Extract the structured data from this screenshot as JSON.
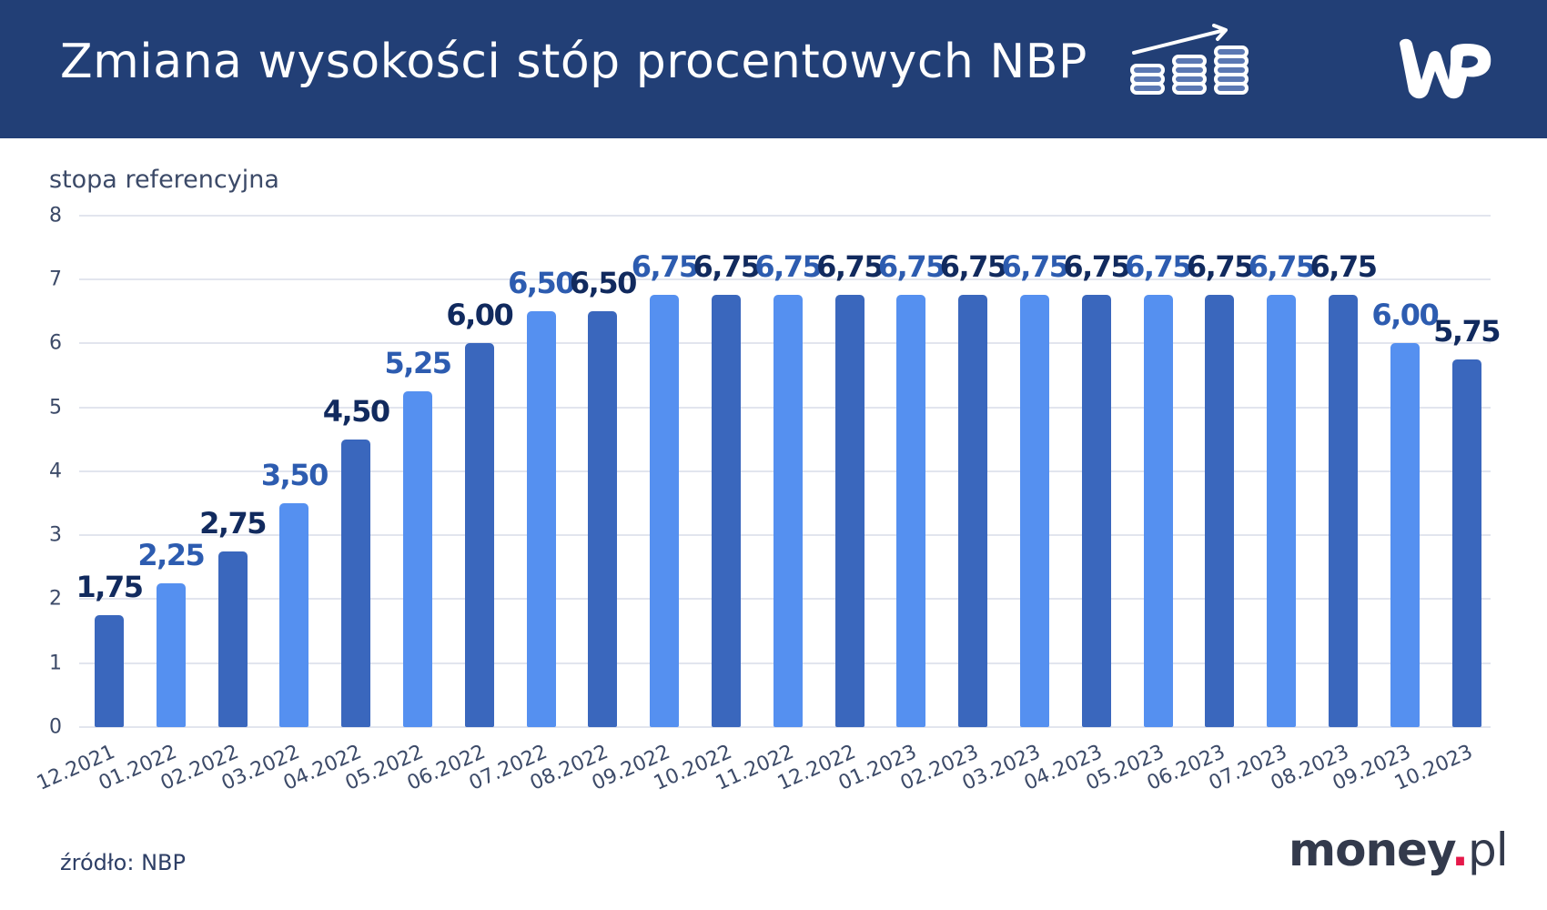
{
  "header": {
    "title": "Zmiana wysokości stóp procentowych NBP",
    "icons": [
      "coins-growth-icon",
      "wp-logo"
    ],
    "background_color": "#223f76"
  },
  "y_axis_label": "stopa referencyjna",
  "source": "źródło: NBP",
  "brand": {
    "name": "money",
    "dot": ".",
    "suffix": "pl",
    "dot_color": "#e5194a"
  },
  "colors": {
    "bar_dark": "#3a67bd",
    "bar_light": "#5590f0",
    "label_dark": "#112a5e",
    "label_light": "#2d5cb0",
    "grid": "#e2e5ee"
  },
  "chart_data": {
    "type": "bar",
    "title": "Zmiana wysokości stóp procentowych NBP",
    "xlabel": "",
    "ylabel": "stopa referencyjna",
    "ylim": [
      0,
      8
    ],
    "yticks": [
      0,
      1,
      2,
      3,
      4,
      5,
      6,
      7,
      8
    ],
    "grid": true,
    "legend": "none",
    "categories": [
      "12.2021",
      "01.2022",
      "02.2022",
      "03.2022",
      "04.2022",
      "05.2022",
      "06.2022",
      "07.2022",
      "08.2022",
      "09.2022",
      "10.2022",
      "11.2022",
      "12.2022",
      "01.2023",
      "02.2023",
      "03.2023",
      "04.2023",
      "05.2023",
      "06.2023",
      "07.2023",
      "08.2023",
      "09.2023",
      "10.2023"
    ],
    "values": [
      1.75,
      2.25,
      2.75,
      3.5,
      4.5,
      5.25,
      6.0,
      6.5,
      6.5,
      6.75,
      6.75,
      6.75,
      6.75,
      6.75,
      6.75,
      6.75,
      6.75,
      6.75,
      6.75,
      6.75,
      6.75,
      6.0,
      5.75
    ],
    "value_labels": [
      "1,75",
      "2,25",
      "2,75",
      "3,50",
      "4,50",
      "5,25",
      "6,00",
      "6,50",
      "6,50",
      "6,75",
      "6,75",
      "6,75",
      "6,75",
      "6,75",
      "6,75",
      "6,75",
      "6,75",
      "6,75",
      "6,75",
      "6,75",
      "6,75",
      "6,00",
      "5,75"
    ]
  }
}
